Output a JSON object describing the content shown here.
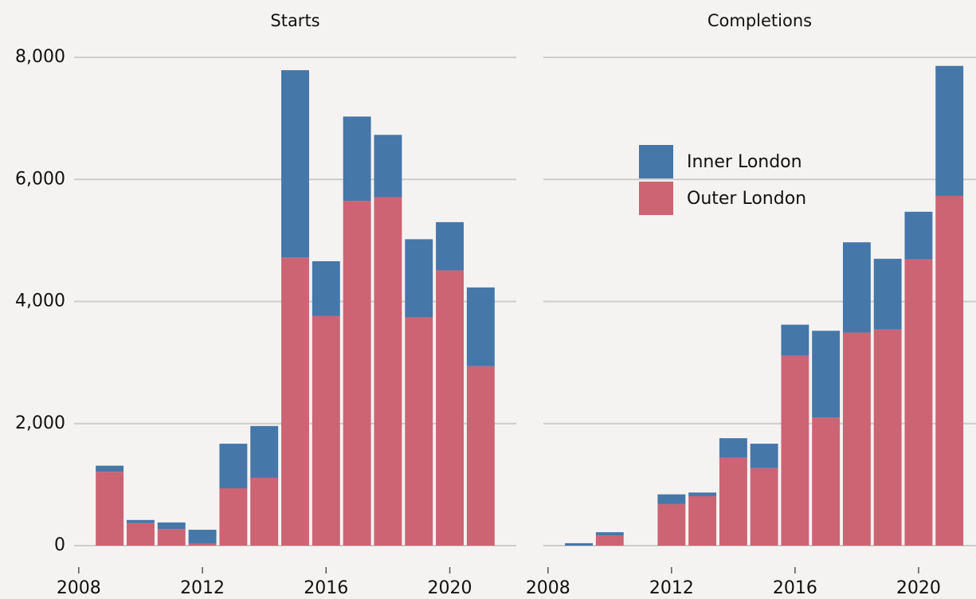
{
  "chart_data": [
    {
      "type": "bar",
      "stacked": true,
      "title": "Starts",
      "x": [
        2009,
        2010,
        2011,
        2012,
        2013,
        2014,
        2015,
        2016,
        2017,
        2018,
        2019,
        2020,
        2021
      ],
      "series": [
        {
          "color": "#4577a9",
          "values": [
            100,
            50,
            110,
            230,
            730,
            850,
            3070,
            900,
            1380,
            1020,
            1280,
            790,
            1290
          ]
        },
        {
          "color": "#cc6474",
          "values": [
            1210,
            370,
            270,
            30,
            940,
            1110,
            4720,
            3760,
            5650,
            5710,
            3740,
            4510,
            2940
          ]
        }
      ],
      "xlim": [
        2007.85,
        2022.15
      ],
      "xticks": [
        2008,
        2012,
        2016,
        2020
      ],
      "ylim": [
        0,
        8000
      ],
      "yticks": [
        0,
        {
          "value": 2000,
          "label": "2,000"
        },
        {
          "value": 4000,
          "label": "4,000"
        },
        {
          "value": 6000,
          "label": "6,000"
        },
        {
          "value": 8000,
          "label": "8,000"
        }
      ],
      "grid": true
    },
    {
      "type": "bar",
      "stacked": true,
      "title": "Completions",
      "x": [
        2009,
        2010,
        2011,
        2012,
        2013,
        2014,
        2015,
        2016,
        2017,
        2018,
        2019,
        2020,
        2021
      ],
      "series": [
        {
          "name": "Inner London",
          "color": "#4577a9",
          "values": [
            40,
            50,
            0,
            160,
            60,
            320,
            400,
            510,
            1420,
            1480,
            1160,
            780,
            2130
          ]
        },
        {
          "name": "Outer London",
          "color": "#cc6474",
          "values": [
            0,
            170,
            0,
            680,
            810,
            1440,
            1270,
            3110,
            2100,
            3490,
            3540,
            4690,
            5730
          ]
        }
      ],
      "xlim": [
        2007.85,
        2021.86
      ],
      "xticks": [
        2008,
        2012,
        2016,
        2020
      ],
      "ylim": [
        0,
        8000
      ],
      "yticks": [
        0,
        2000,
        4000,
        6000,
        8000
      ],
      "grid": true,
      "legend": "upper left"
    }
  ]
}
